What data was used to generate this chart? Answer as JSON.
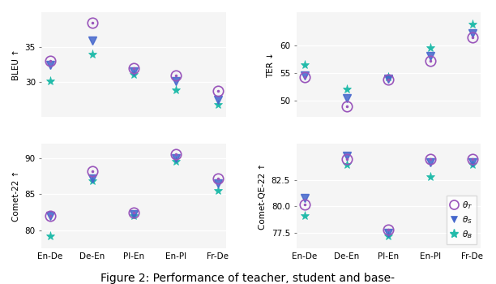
{
  "categories": [
    "En-De",
    "De-En",
    "Pl-En",
    "En-Pl",
    "Fr-De"
  ],
  "bleu": {
    "teacher": [
      33.0,
      38.5,
      32.0,
      31.0,
      28.8
    ],
    "student": [
      32.5,
      36.0,
      31.5,
      30.2,
      27.5
    ],
    "base": [
      30.2,
      34.0,
      31.1,
      28.9,
      26.8
    ]
  },
  "ter": {
    "teacher": [
      54.2,
      49.0,
      53.8,
      57.2,
      61.5
    ],
    "student": [
      54.5,
      50.5,
      54.0,
      58.0,
      62.2
    ],
    "base": [
      56.5,
      52.0,
      54.2,
      59.5,
      63.8
    ]
  },
  "comet22": {
    "teacher": [
      82.0,
      88.2,
      82.5,
      90.5,
      87.2
    ],
    "student": [
      82.0,
      87.2,
      82.2,
      90.0,
      86.5
    ],
    "base": [
      79.2,
      86.8,
      82.0,
      89.5,
      85.5
    ]
  },
  "cometqe": {
    "teacher": [
      80.2,
      84.5,
      77.8,
      84.5,
      84.5
    ],
    "student": [
      80.8,
      84.8,
      77.5,
      84.2,
      84.2
    ],
    "base": [
      79.1,
      84.0,
      77.2,
      82.8,
      84.0
    ]
  },
  "color_teacher": "#9955BB",
  "color_student": "#4466CC",
  "color_base": "#22BBAA",
  "ylabel_bleu": "BLEU ↑",
  "ylabel_ter": "TER ↓",
  "ylabel_comet22": "Comet-22 ↑",
  "ylabel_cometqe": "Comet-QE-22 ↑",
  "caption": "Figure 2: Performance of teacher, student and base-",
  "background_color": "#ffffff",
  "plot_bg_color": "#f5f5f5",
  "bleu_ylim": [
    25,
    40
  ],
  "bleu_yticks": [
    30,
    35
  ],
  "ter_ylim": [
    47,
    66
  ],
  "ter_yticks": [
    50,
    55,
    60
  ],
  "comet22_ylim": [
    77.5,
    92
  ],
  "comet22_yticks": [
    80,
    85,
    90
  ],
  "cometqe_ylim": [
    76.0,
    86.0
  ],
  "cometqe_yticks": [
    77.5,
    80.0,
    82.5
  ]
}
